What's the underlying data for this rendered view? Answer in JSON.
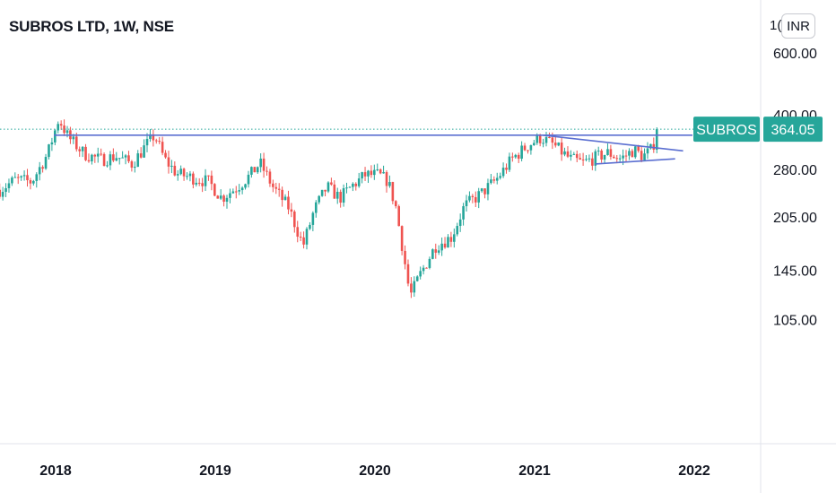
{
  "header": {
    "title": "SUBROS LTD, 1W, NSE",
    "currency": "INR",
    "top_tick_partial": "1("
  },
  "chart_data": {
    "type": "candlestick",
    "symbol": "SUBROS",
    "interval": "1W",
    "exchange": "NSE",
    "last_price": 364.05,
    "last_price_label": "364.05",
    "price_scale": "log",
    "y_ticks": [
      "600.00",
      "400.00",
      "280.00",
      "205.00",
      "145.00",
      "105.00"
    ],
    "y_tick_values": [
      600,
      400,
      280,
      205,
      145,
      105
    ],
    "x_ticks": [
      "2018",
      "2019",
      "2020",
      "2021",
      "2022"
    ],
    "x_tick_values": [
      2018.0,
      2019.0,
      2020.0,
      2021.0,
      2022.0
    ],
    "price_path": [
      [
        2017.65,
        245
      ],
      [
        2017.75,
        262
      ],
      [
        2017.85,
        258
      ],
      [
        2017.95,
        310
      ],
      [
        2018.02,
        390
      ],
      [
        2018.08,
        345
      ],
      [
        2018.18,
        310
      ],
      [
        2018.28,
        298
      ],
      [
        2018.38,
        305
      ],
      [
        2018.48,
        290
      ],
      [
        2018.56,
        325
      ],
      [
        2018.62,
        350
      ],
      [
        2018.68,
        300
      ],
      [
        2018.76,
        272
      ],
      [
        2018.86,
        265
      ],
      [
        2018.96,
        258
      ],
      [
        2019.04,
        232
      ],
      [
        2019.14,
        250
      ],
      [
        2019.22,
        270
      ],
      [
        2019.28,
        292
      ],
      [
        2019.36,
        250
      ],
      [
        2019.46,
        218
      ],
      [
        2019.55,
        170
      ],
      [
        2019.62,
        215
      ],
      [
        2019.7,
        250
      ],
      [
        2019.78,
        232
      ],
      [
        2019.86,
        252
      ],
      [
        2019.94,
        270
      ],
      [
        2020.02,
        270
      ],
      [
        2020.08,
        260
      ],
      [
        2020.13,
        220
      ],
      [
        2020.18,
        160
      ],
      [
        2020.22,
        122
      ],
      [
        2020.28,
        140
      ],
      [
        2020.38,
        170
      ],
      [
        2020.48,
        180
      ],
      [
        2020.56,
        220
      ],
      [
        2020.66,
        238
      ],
      [
        2020.76,
        262
      ],
      [
        2020.86,
        300
      ],
      [
        2020.96,
        328
      ],
      [
        2021.04,
        345
      ],
      [
        2021.12,
        328
      ],
      [
        2021.22,
        300
      ],
      [
        2021.3,
        292
      ],
      [
        2021.38,
        302
      ],
      [
        2021.46,
        312
      ],
      [
        2021.54,
        300
      ],
      [
        2021.62,
        318
      ],
      [
        2021.68,
        305
      ],
      [
        2021.73,
        318
      ],
      [
        2021.78,
        364.05
      ]
    ],
    "annotations": {
      "horizontal_resistance": 350,
      "triangle_upper": [
        [
          2021.05,
          350
        ],
        [
          2021.93,
          316
        ]
      ],
      "triangle_lower": [
        [
          2021.38,
          290
        ],
        [
          2021.88,
          300
        ]
      ]
    }
  },
  "colors": {
    "up": "#26a69a",
    "down": "#ef5350",
    "trendline": "#5b6fd1",
    "price_tag": "#26a69a",
    "axis_line": "#e0e3eb",
    "text": "#131722"
  }
}
